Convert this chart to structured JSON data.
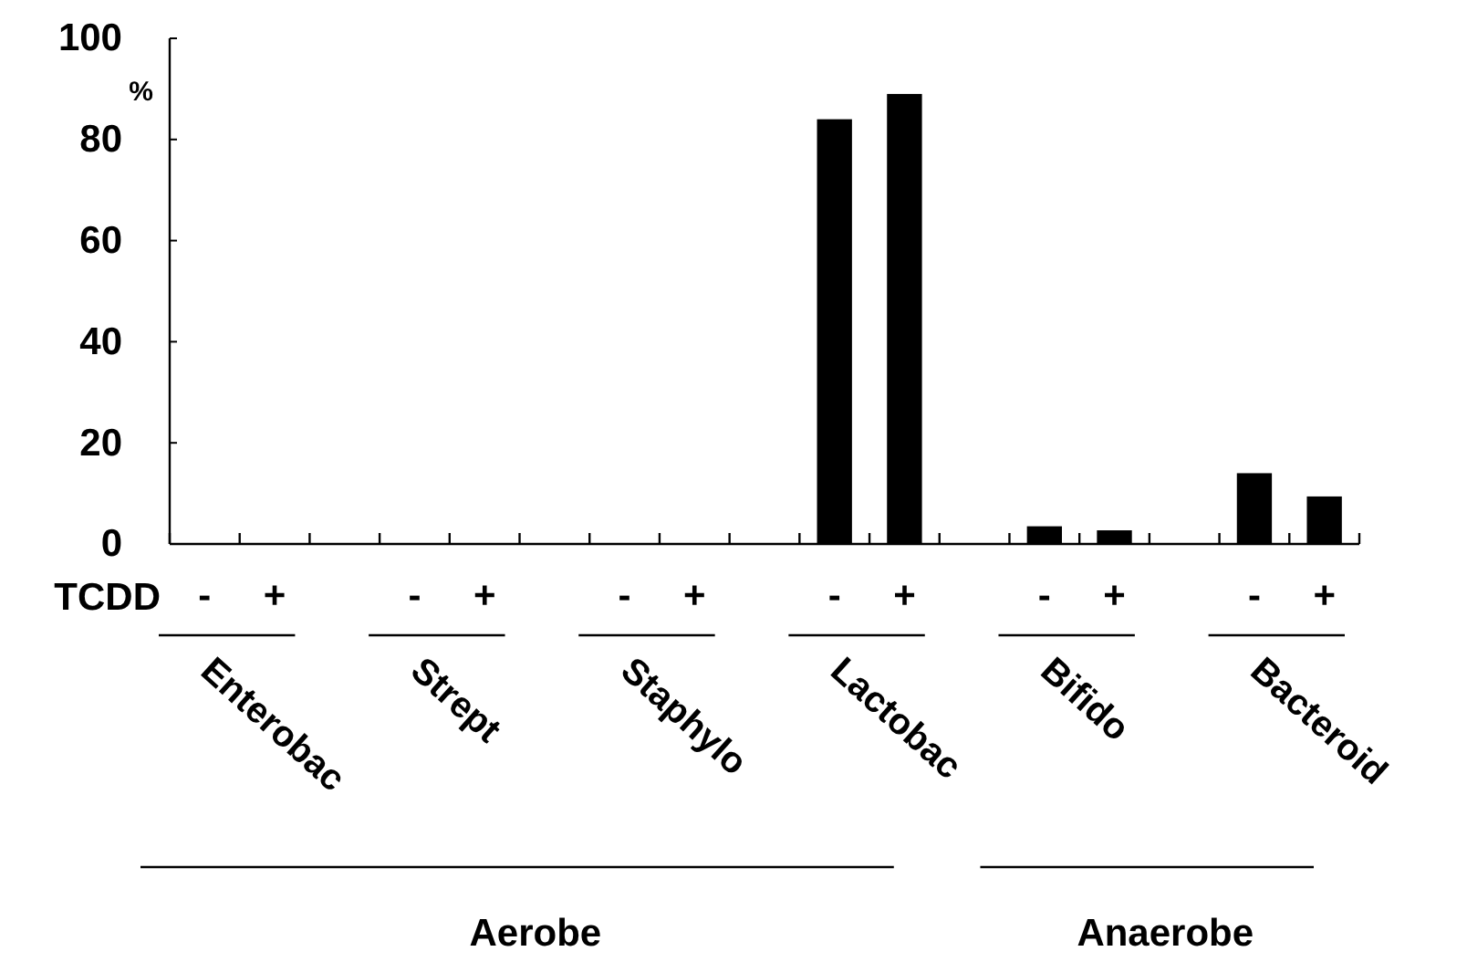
{
  "chart_data": {
    "type": "bar",
    "categories": [
      "-",
      "+",
      null,
      "-",
      "+",
      null,
      "-",
      "+",
      null,
      "-",
      "+",
      null,
      "-",
      "+",
      null,
      "-",
      "+"
    ],
    "values": [
      0,
      0,
      null,
      0,
      0,
      null,
      0,
      0,
      null,
      84,
      89,
      null,
      3.5,
      2.7,
      null,
      14,
      9.4
    ],
    "color": "#000000",
    "ylim": [
      0,
      100
    ],
    "yticks": [
      0,
      20,
      40,
      60,
      80,
      100
    ],
    "ylabel": "%",
    "xlabel": "TCDD",
    "annotations": [
      "Enterobac",
      "Strept",
      "Staphylo",
      "Lactobac",
      "Bifido",
      "Bacteroid",
      "Aerobe",
      "Anaerobe"
    ]
  }
}
